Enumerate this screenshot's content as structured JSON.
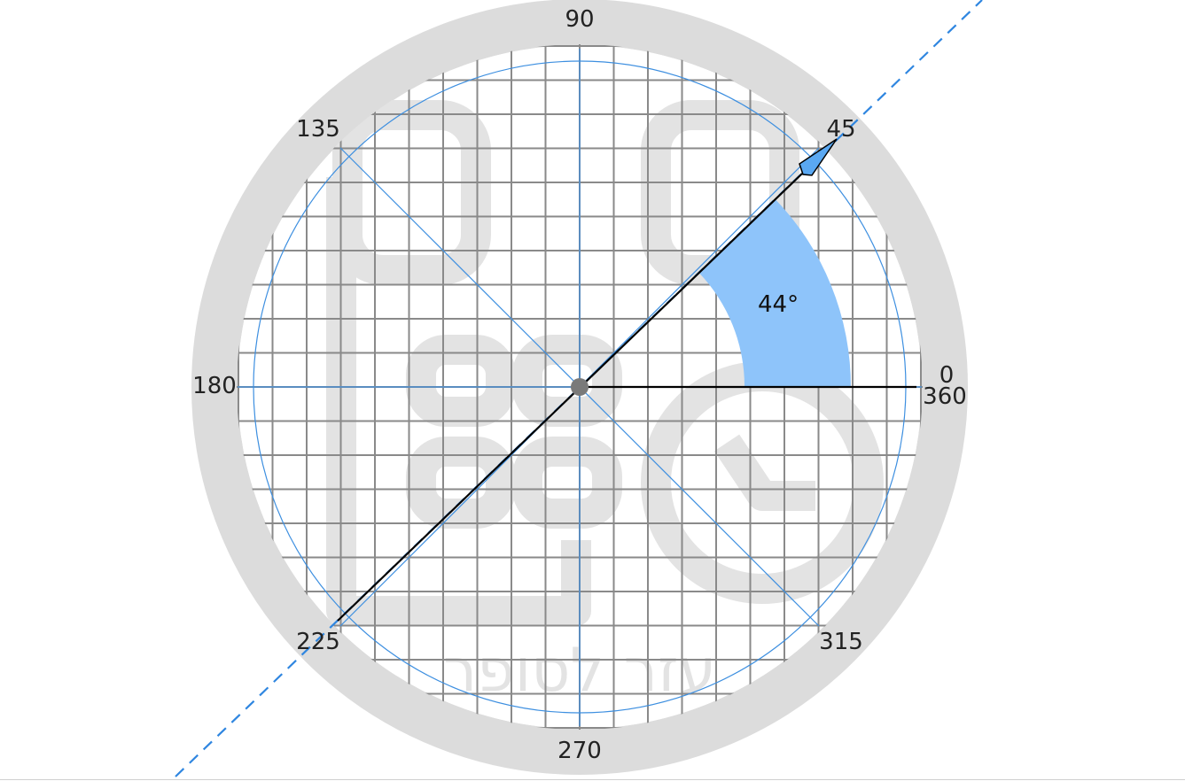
{
  "protractor": {
    "angle_labels": [
      "0",
      "360",
      "45",
      "90",
      "135",
      "180",
      "225",
      "270",
      "315"
    ],
    "measured_angle_label": "44°",
    "watermark_text": "עזר לסופר",
    "measured_angle_degrees": 44,
    "colors": {
      "ring": "#dcdcdc",
      "grid": "#8a8a8a",
      "guide_lines": "#3d8fe0",
      "angle_arc_fill": "#8ec4fa",
      "arrow_fill": "#5aa8f2",
      "arrow_line": "#000000",
      "dashed_line": "#2f86e0",
      "watermark": "#e3e3e3"
    }
  }
}
